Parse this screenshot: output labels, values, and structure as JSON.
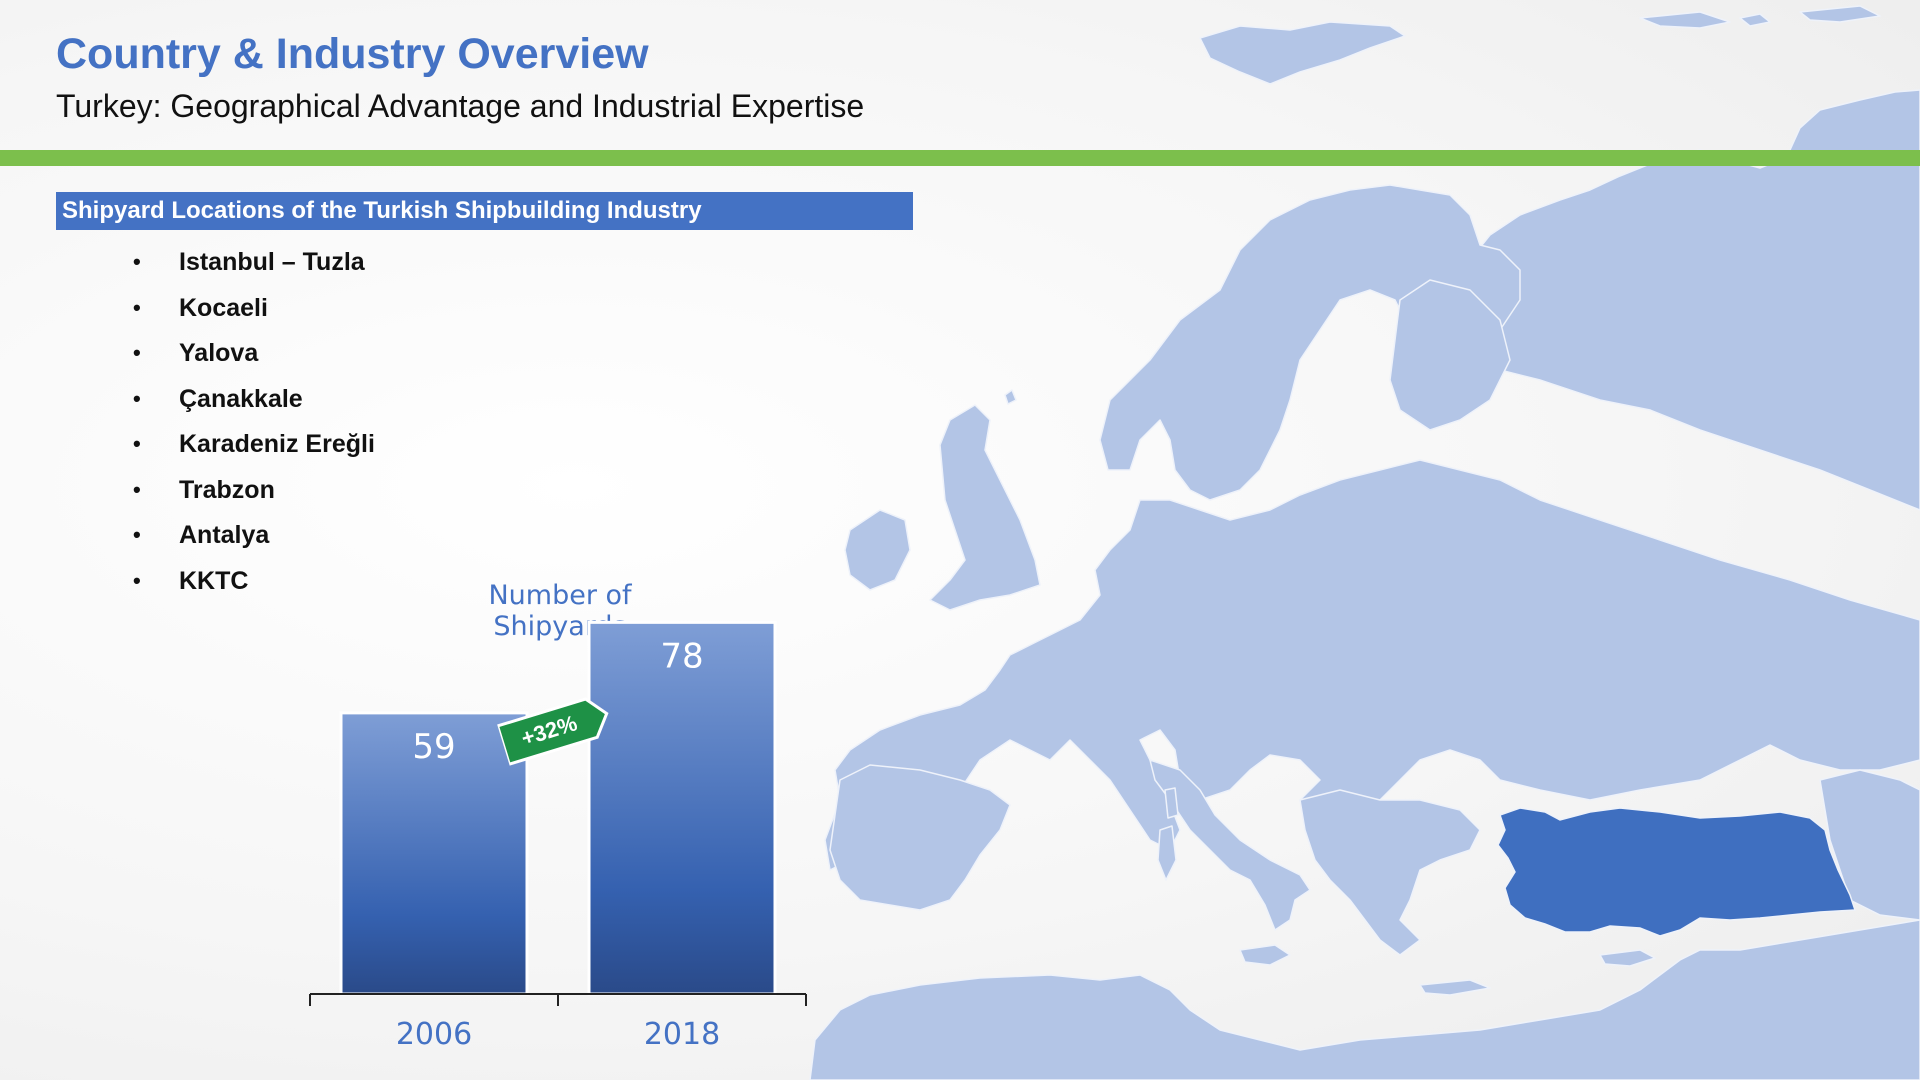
{
  "header": {
    "title": "Country & Industry Overview",
    "subtitle": "Turkey: Geographical Advantage and Industrial Expertise"
  },
  "section": {
    "header": "Shipyard Locations of the Turkish Shipbuilding Industry",
    "locations": [
      "Istanbul – Tuzla",
      "Kocaeli",
      "Yalova",
      "Çanakkale",
      "Karadeniz Ereğli",
      "Trabzon",
      "Antalya",
      "KKTC"
    ]
  },
  "map": {
    "highlighted_country": "Turkey",
    "colors": {
      "land": "#b3c5e6",
      "highlight": "#3f6fc0",
      "border": "#eef2fa"
    }
  },
  "chart_data": {
    "type": "bar",
    "title": "Number of Shipyards",
    "categories": [
      "2006",
      "2018"
    ],
    "values": [
      59,
      78
    ],
    "annotation": "+32%",
    "xlabel": "",
    "ylabel": "",
    "ylim": [
      0,
      85
    ],
    "grid": false,
    "colors": {
      "bar_top": "#7f9ed6",
      "bar_mid": "#3561b0",
      "bar_bottom": "#2a4a89",
      "tag": "#1e9146"
    }
  },
  "colors": {
    "accent": "#4472c4",
    "green_bar": "#7cbf4c"
  }
}
